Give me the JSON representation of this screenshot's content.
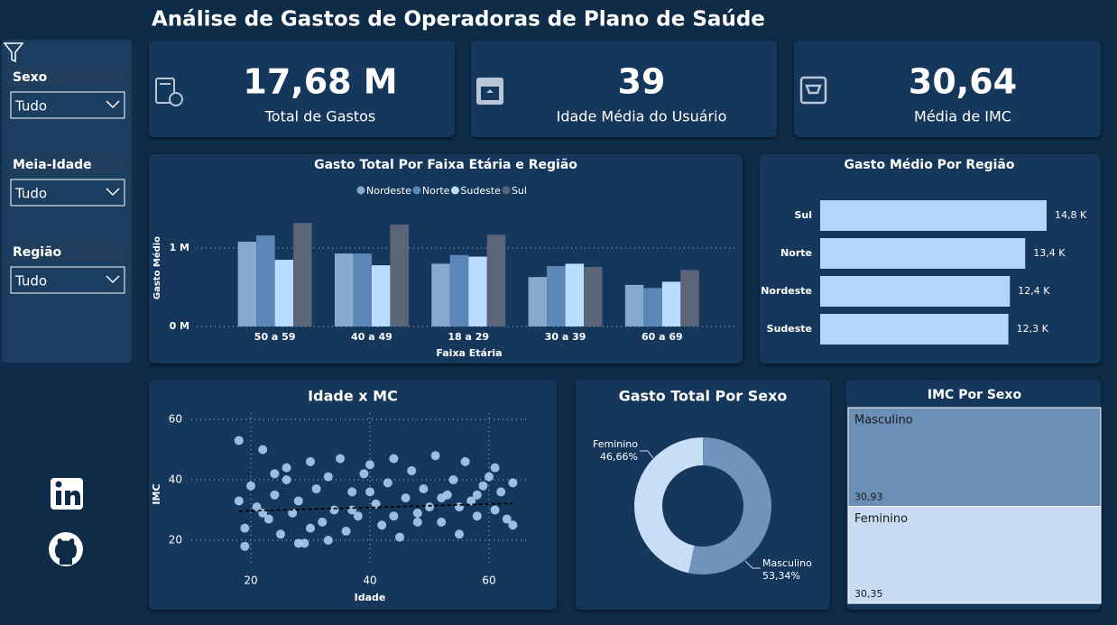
{
  "header": {
    "title": "Análise de Gastos de Operadoras de Plano de Saúde"
  },
  "filters": [
    {
      "label": "Sexo",
      "value": "Tudo"
    },
    {
      "label": "Meia-Idade",
      "value": "Tudo"
    },
    {
      "label": "Região",
      "value": "Tudo"
    }
  ],
  "kpis": [
    {
      "value": "17,68 M",
      "label": "Total de Gastos"
    },
    {
      "value": "39",
      "label": "Idade Média do Usuário"
    },
    {
      "value": "30,64",
      "label": "Média de IMC"
    }
  ],
  "chart_data": [
    {
      "type": "bar",
      "title": "Gasto Total Por Faixa Etária e Região",
      "categories": [
        "50 a 59",
        "40 a 49",
        "18 a 29",
        "30 a 39",
        "60 a 69"
      ],
      "series": [
        {
          "name": "Nordeste",
          "color": "#87a9cc",
          "values": [
            1.08,
            0.93,
            0.8,
            0.63,
            0.53
          ]
        },
        {
          "name": "Norte",
          "color": "#5b87b8",
          "values": [
            1.16,
            0.93,
            0.91,
            0.77,
            0.49
          ]
        },
        {
          "name": "Sudeste",
          "color": "#b9dcff",
          "values": [
            0.85,
            0.78,
            0.89,
            0.8,
            0.57
          ]
        },
        {
          "name": "Sul",
          "color": "#5a6577",
          "values": [
            1.32,
            1.3,
            1.17,
            0.76,
            0.72
          ]
        }
      ],
      "ylim": [
        0,
        1.5
      ],
      "yticks": [
        {
          "value": 0,
          "label": "0 M"
        },
        {
          "value": 1,
          "label": "1 M"
        }
      ],
      "y_label": "Gasto Médio",
      "x_label": "Faixa Etária",
      "grid": true,
      "legend": "top"
    },
    {
      "type": "hbar",
      "title": "Gasto Médio Por Região",
      "categories": [
        "Sul",
        "Norte",
        "Nordeste",
        "Sudeste"
      ],
      "values": [
        14.8,
        13.4,
        12.4,
        12.3
      ],
      "value_labels": [
        "14,8 K",
        "13,4 K",
        "12,4 K",
        "12,3 K"
      ],
      "color": "#b3d5fa"
    },
    {
      "type": "scatter",
      "title": "Idade x MC",
      "x_label": "Idade",
      "y_label": "IMC",
      "color": "#a9cdf2",
      "x": [
        18,
        19,
        20,
        21,
        22,
        23,
        24,
        25,
        26,
        27,
        28,
        29,
        30,
        31,
        32,
        33,
        34,
        35,
        36,
        37,
        38,
        39,
        40,
        41,
        42,
        43,
        44,
        45,
        46,
        47,
        48,
        49,
        50,
        51,
        52,
        53,
        54,
        55,
        56,
        57,
        58,
        59,
        60,
        61,
        62,
        63,
        64,
        18,
        22,
        19,
        26,
        33,
        44,
        52,
        61,
        64,
        40,
        37,
        28,
        48,
        55,
        30,
        24,
        58
      ],
      "values": [
        53,
        24,
        38,
        31,
        50,
        27,
        35,
        22,
        44,
        29,
        33,
        19,
        46,
        37,
        26,
        41,
        30,
        47,
        23,
        36,
        28,
        42,
        45,
        32,
        25,
        39,
        47,
        21,
        34,
        43,
        29,
        37,
        31,
        48,
        26,
        35,
        40,
        22,
        46,
        33,
        28,
        38,
        41,
        30,
        36,
        27,
        39,
        33,
        29,
        18,
        40,
        20,
        28,
        34,
        44,
        25,
        36,
        30,
        19,
        26,
        31,
        24,
        42,
        35
      ],
      "xlim": [
        10,
        66
      ],
      "ylim": [
        12,
        62
      ],
      "xticks": [
        20,
        40,
        60
      ],
      "yticks": [
        20,
        40,
        60
      ],
      "grid": true,
      "trendline": {
        "x": [
          18,
          64
        ],
        "y": [
          29.6,
          32.2
        ]
      }
    },
    {
      "type": "donut",
      "title": "Gasto Total Por Sexo",
      "categories": [
        "Feminino",
        "Masculino"
      ],
      "values": [
        46.66,
        53.34
      ],
      "value_labels": [
        "46,66%",
        "53,34%"
      ],
      "colors": [
        "#c9def5",
        "#6f93bd"
      ]
    },
    {
      "type": "treemap",
      "title": "IMC Por Sexo",
      "categories": [
        "Masculino",
        "Feminino"
      ],
      "values": [
        30.93,
        30.35
      ],
      "value_labels": [
        "30,93",
        "30,35"
      ],
      "colors": [
        "#6b8fb6",
        "#c7dcf3"
      ]
    }
  ]
}
